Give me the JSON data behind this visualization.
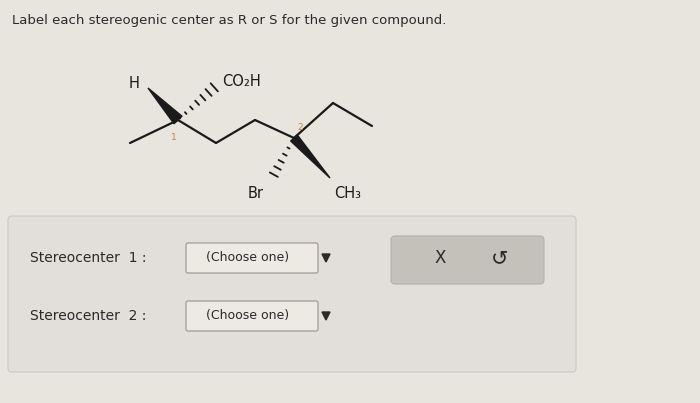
{
  "title": "Label each stereogenic center as R or S for the given compound.",
  "title_fontsize": 9.5,
  "bg_color": "#e8e4de",
  "panel_color": "#eae6e0",
  "molecule": {
    "stereo1_label": "1",
    "stereo2_label": "2",
    "H_label": "H",
    "CO2H_label": "CO₂H",
    "Br_label": "Br",
    "CH3_label": "CH₃"
  },
  "stereocenter1_text": "Stereocenter  1 :",
  "stereocenter2_text": "Stereocenter  2 :",
  "dropdown_text": "(Choose one)",
  "x_symbol": "X",
  "undo_symbol": "↺",
  "stereo_num_color": "#c8843a"
}
